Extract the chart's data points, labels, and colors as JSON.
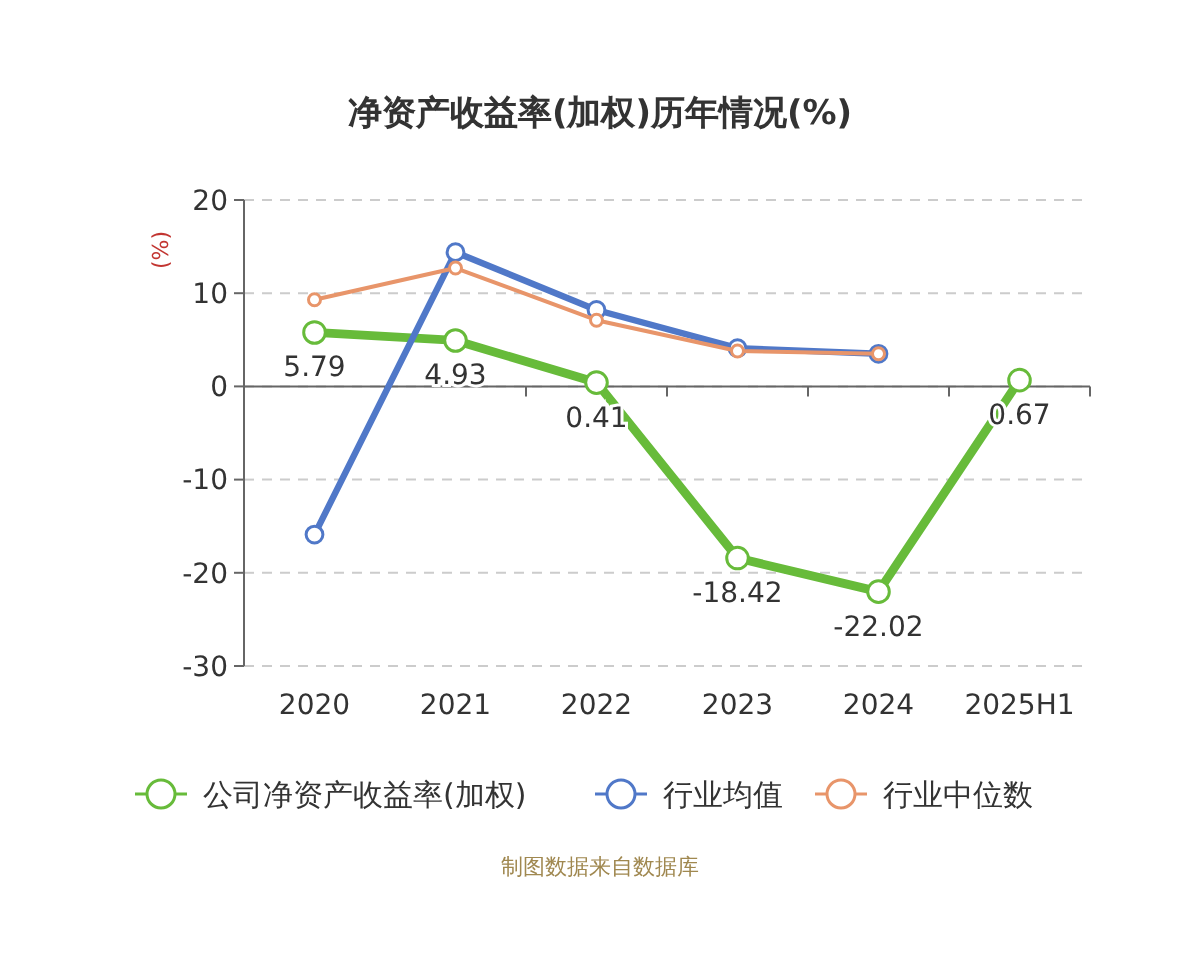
{
  "chart_data": {
    "type": "line",
    "title": "净资产收益率(加权)历年情况(%)",
    "ylabel": "(%)",
    "categories": [
      "2020",
      "2021",
      "2022",
      "2023",
      "2024",
      "2025H1"
    ],
    "series": [
      {
        "name": "公司净资产收益率(加权)",
        "color": "#67bb3a",
        "values": [
          5.79,
          4.93,
          0.41,
          -18.42,
          -22.02,
          0.67
        ],
        "value_labels": [
          "5.79",
          "4.93",
          "0.41",
          "-18.42",
          "-22.02",
          "0.67"
        ]
      },
      {
        "name": "行业均值",
        "color": "#5078c8",
        "values": [
          -15.9,
          14.4,
          8.2,
          4.1,
          3.5,
          null
        ]
      },
      {
        "name": "行业中位数",
        "color": "#e8956a",
        "values": [
          9.3,
          12.7,
          7.1,
          3.8,
          3.5,
          null
        ]
      }
    ],
    "ylim": [
      -30,
      20
    ],
    "yticks": [
      -30,
      -20,
      -10,
      0,
      10,
      20
    ],
    "grid": "y",
    "legend": "bottom",
    "marker": "circle",
    "line_style": "solid",
    "annotations": [
      "制图数据来自数据库"
    ]
  }
}
